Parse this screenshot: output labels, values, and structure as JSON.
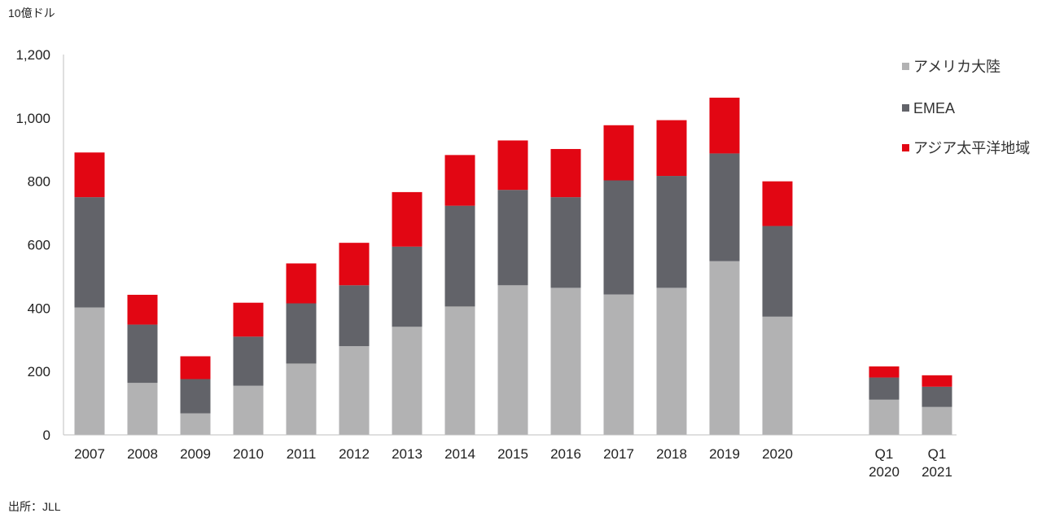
{
  "unit_label": "10億ドル",
  "source_label": "出所：JLL",
  "colors": {
    "americas": "#b2b2b3",
    "emea": "#626369",
    "apac": "#e20613",
    "axis": "#bfbfbf"
  },
  "chart_data": {
    "type": "bar",
    "stacked": true,
    "categories": [
      [
        "2007"
      ],
      [
        "2008"
      ],
      [
        "2009"
      ],
      [
        "2010"
      ],
      [
        "2011"
      ],
      [
        "2012"
      ],
      [
        "2013"
      ],
      [
        "2014"
      ],
      [
        "2015"
      ],
      [
        "2016"
      ],
      [
        "2017"
      ],
      [
        "2018"
      ],
      [
        "2019"
      ],
      [
        "2020"
      ],
      [
        "Q1",
        "2020"
      ],
      [
        "Q1",
        "2021"
      ]
    ],
    "series": [
      {
        "name": "アメリカ大陸",
        "color": "#b2b2b3",
        "values": [
          402,
          164,
          68,
          155,
          225,
          280,
          341,
          405,
          472,
          464,
          443,
          464,
          548,
          373,
          111,
          88
        ]
      },
      {
        "name": "EMEA",
        "color": "#626369",
        "values": [
          348,
          184,
          108,
          155,
          190,
          192,
          253,
          318,
          301,
          286,
          360,
          353,
          340,
          286,
          70,
          64
        ]
      },
      {
        "name": "アジア太平洋地域",
        "color": "#e20613",
        "values": [
          141,
          94,
          72,
          107,
          126,
          134,
          172,
          160,
          156,
          152,
          174,
          176,
          176,
          141,
          35,
          36
        ]
      }
    ],
    "y_ticks": [
      "0",
      "200",
      "400",
      "600",
      "800",
      "1,000",
      "1,200"
    ],
    "ylim": [
      0,
      1200
    ],
    "grid": false,
    "legend_position": "right"
  }
}
